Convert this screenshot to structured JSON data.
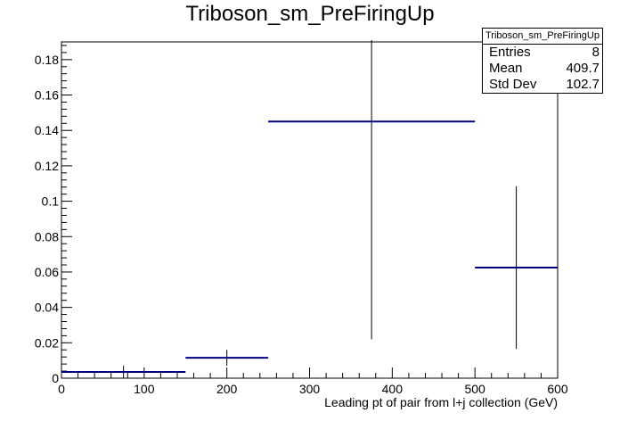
{
  "chart_data": {
    "type": "histogram",
    "title": "Triboson_sm_PreFiringUp",
    "xlabel": "Leading pt of pair from l+j collection (GeV)",
    "ylabel": "",
    "xlim": [
      0,
      600
    ],
    "ylim": [
      0,
      0.19
    ],
    "x_ticks": [
      "0",
      "100",
      "200",
      "300",
      "400",
      "500",
      "600"
    ],
    "y_ticks": [
      "0",
      "0.02",
      "0.04",
      "0.06",
      "0.08",
      "0.1",
      "0.12",
      "0.14",
      "0.16",
      "0.18"
    ],
    "x_tick_values": [
      0,
      100,
      200,
      300,
      400,
      500,
      600
    ],
    "y_tick_values": [
      0,
      0.02,
      0.04,
      0.06,
      0.08,
      0.1,
      0.12,
      0.14,
      0.16,
      0.18
    ],
    "bins": [
      {
        "x_low": 0,
        "x_high": 150,
        "value": 0.0035,
        "err_low": 0.0035,
        "err_high": 0.0035
      },
      {
        "x_low": 150,
        "x_high": 250,
        "value": 0.0115,
        "err_low": 0.0045,
        "err_high": 0.0045
      },
      {
        "x_low": 250,
        "x_high": 500,
        "value": 0.145,
        "err_low": 0.123,
        "err_high": 0.046
      },
      {
        "x_low": 500,
        "x_high": 600,
        "value": 0.0625,
        "err_low": 0.046,
        "err_high": 0.046
      }
    ],
    "line_color": "#000080",
    "grid": false,
    "legend": "none"
  },
  "stats": {
    "title": "Triboson_sm_PreFiringUp",
    "rows": [
      {
        "label": "Entries",
        "value": "8"
      },
      {
        "label": "Mean",
        "value": "409.7"
      },
      {
        "label": "Std Dev",
        "value": "102.7"
      }
    ]
  }
}
